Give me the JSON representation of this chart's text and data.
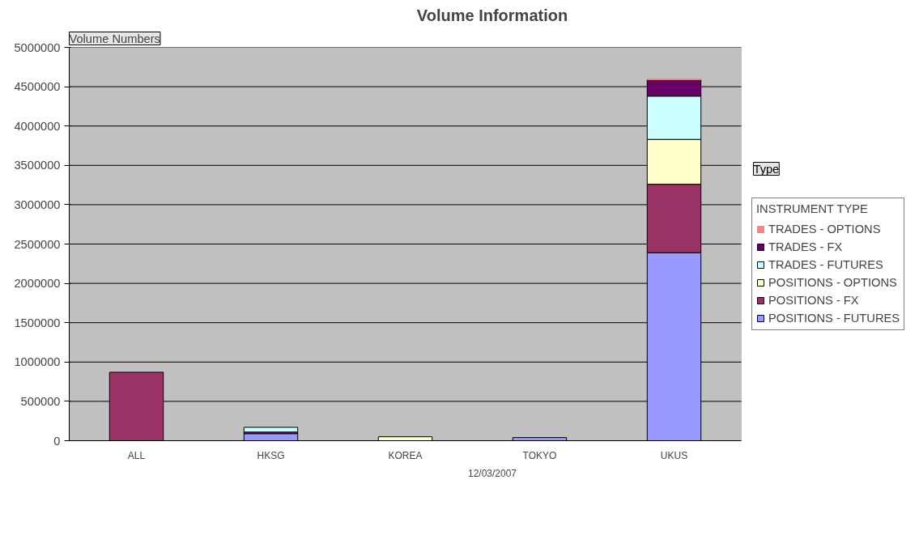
{
  "chart_data": {
    "type": "bar",
    "title": "Volume Information",
    "ylabel": "Volume Numbers",
    "xlabel": "12/03/2007",
    "legend_title": "INSTRUMENT TYPE",
    "annotations": [
      "Type"
    ],
    "categories": [
      "ALL",
      "HKSG",
      "KOREA",
      "TOKYO",
      "UKUS"
    ],
    "stacked": true,
    "series": [
      {
        "name": "POSITIONS - FUTURES",
        "color": "#9999ff",
        "values": [
          null,
          90000,
          null,
          40000,
          2390000
        ]
      },
      {
        "name": "POSITIONS - FX",
        "color": "#993366",
        "values": [
          870000,
          20000,
          null,
          null,
          870000
        ]
      },
      {
        "name": "POSITIONS - OPTIONS",
        "color": "#ffffcc",
        "values": [
          null,
          null,
          50000,
          null,
          570000
        ]
      },
      {
        "name": "TRADES - FUTURES",
        "color": "#ccffff",
        "values": [
          null,
          60000,
          null,
          null,
          550000
        ]
      },
      {
        "name": "TRADES - FX",
        "color": "#660066",
        "values": [
          null,
          null,
          null,
          null,
          210000
        ]
      },
      {
        "name": "TRADES - OPTIONS",
        "color": "#ff8080",
        "values": [
          null,
          null,
          null,
          null,
          0
        ]
      }
    ],
    "ylim": [
      0,
      5000000
    ],
    "yticks": [
      0,
      500000,
      1000000,
      1500000,
      2000000,
      2500000,
      3000000,
      3500000,
      4000000,
      4500000,
      5000000
    ],
    "grid": "y",
    "legend": "right"
  }
}
